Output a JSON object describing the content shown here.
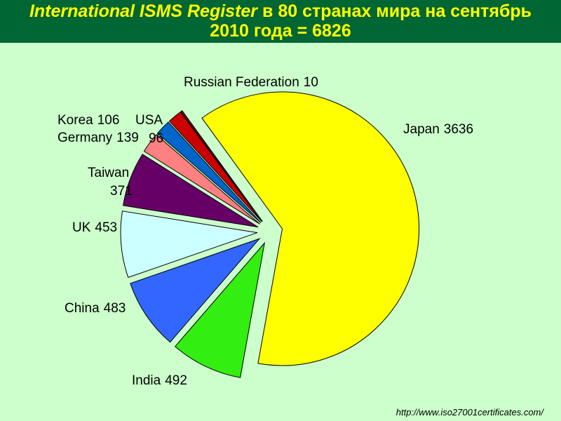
{
  "chart_data": {
    "type": "pie",
    "title_emphasis": "International ISMS Register",
    "title": "в 80 странах мира на сентябрь 2010 года = 6826",
    "categories": [
      "Japan",
      "India",
      "China",
      "UK",
      "Taiwan",
      "Germany",
      "Korea",
      "USA",
      "Russian Federation"
    ],
    "values": [
      3636,
      492,
      483,
      453,
      371,
      139,
      106,
      96,
      10
    ],
    "colors": [
      "#ffff00",
      "#33ee11",
      "#3366ff",
      "#ccffff",
      "#660066",
      "#ff8080",
      "#0066cc",
      "#cc0000",
      "#990000"
    ],
    "source": "http://www.iso27001certificates.com/"
  }
}
